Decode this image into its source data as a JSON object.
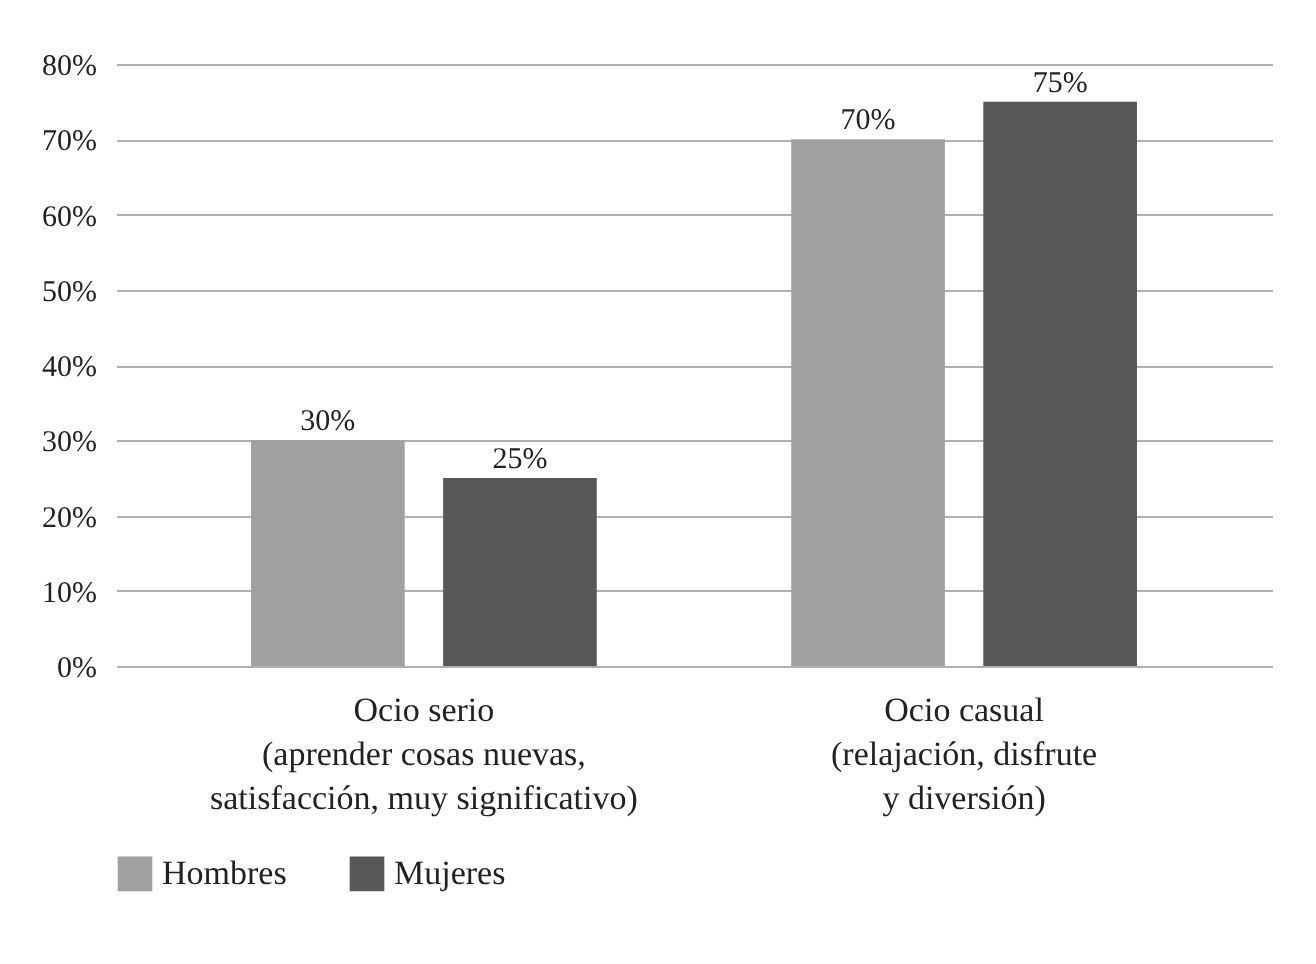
{
  "chart_data": {
    "type": "bar",
    "categories": [
      "Ocio serio\n(aprender cosas nuevas,\nsatisfacción, muy significativo)",
      "Ocio casual\n(relajación, disfrute\ny diversión)"
    ],
    "series": [
      {
        "name": "Hombres",
        "color": "#a0a0a2",
        "values": [
          30,
          70
        ]
      },
      {
        "name": "Mujeres",
        "color": "#58585a",
        "values": [
          25,
          75
        ]
      }
    ],
    "ylim": [
      0,
      80
    ],
    "yticks": [
      {
        "value": 0,
        "label": "0%"
      },
      {
        "value": 10,
        "label": "10%"
      },
      {
        "value": 20,
        "label": "20%"
      },
      {
        "value": 30,
        "label": "30%"
      },
      {
        "value": 40,
        "label": "40%"
      },
      {
        "value": 50,
        "label": "50%"
      },
      {
        "value": 60,
        "label": "60%"
      },
      {
        "value": 70,
        "label": "70%"
      },
      {
        "value": 80,
        "label": "80%"
      }
    ],
    "value_labels": [
      [
        "30%",
        "70%"
      ],
      [
        "25%",
        "75%"
      ]
    ],
    "grid": "y",
    "legend": "bottom"
  }
}
